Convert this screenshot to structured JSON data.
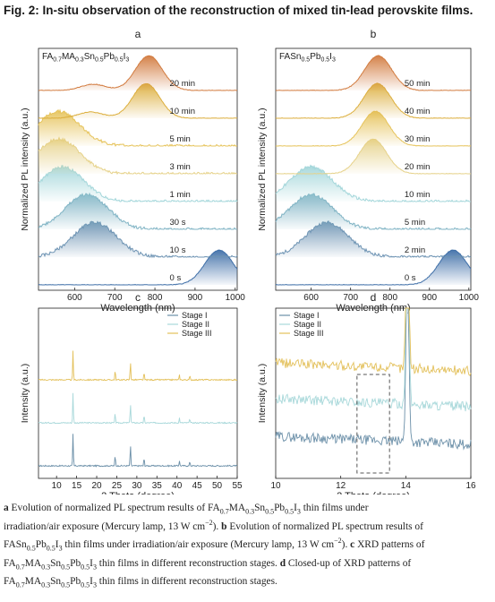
{
  "figure_title": "Fig. 2: In-situ observation of the reconstruction of mixed tin-lead perovskite films.",
  "panels": {
    "a": {
      "letter": "a",
      "title_parts": [
        [
          "FA",
          "n"
        ],
        [
          "0.7",
          "s"
        ],
        [
          "MA",
          "n"
        ],
        [
          "0.3",
          "s"
        ],
        [
          "Sn",
          "n"
        ],
        [
          "0.5",
          "s"
        ],
        [
          "Pb",
          "n"
        ],
        [
          "0.5",
          "s"
        ],
        [
          "I",
          "n"
        ],
        [
          "3",
          "s"
        ]
      ]
    },
    "b": {
      "letter": "b",
      "title_parts": [
        [
          "FASn",
          "n"
        ],
        [
          "0.5",
          "s"
        ],
        [
          "Pb",
          "n"
        ],
        [
          "0.5",
          "s"
        ],
        [
          "I",
          "n"
        ],
        [
          "3",
          "s"
        ]
      ]
    },
    "c": {
      "letter": "c"
    },
    "d": {
      "letter": "d"
    }
  },
  "chart_data": [
    {
      "panel": "a",
      "type": "line",
      "xlabel": "Wavelength (nm)",
      "ylabel": "Normalized PL intensity (a.u.)",
      "xlim": [
        510,
        1005
      ],
      "xticks": [
        600,
        700,
        800,
        900,
        1000
      ],
      "series": [
        {
          "name": "0 s",
          "peak_nm": 960,
          "color": "#3f6fa8"
        },
        {
          "name": "10 s",
          "peak_nm": 650,
          "color": "#6d93b3"
        },
        {
          "name": "30 s",
          "peak_nm": 630,
          "color": "#7fb3c4"
        },
        {
          "name": "1 min",
          "peak_nm": 570,
          "color": "#a3d6da"
        },
        {
          "name": "3 min",
          "peak_nm": 560,
          "color": "#e6d28a"
        },
        {
          "name": "5 min",
          "peak_nm": 560,
          "color": "#e6c35a"
        },
        {
          "name": "10 min",
          "peak_nm": 778,
          "color": "#dcae3c"
        },
        {
          "name": "20 min",
          "peak_nm": 785,
          "color": "#d27b3f"
        }
      ]
    },
    {
      "panel": "b",
      "type": "line",
      "xlabel": "Wavelength (nm)",
      "ylabel": "Normalized PL intensity (a.u.)",
      "xlim": [
        510,
        1005
      ],
      "xticks": [
        600,
        700,
        800,
        900,
        1000
      ],
      "series": [
        {
          "name": "0 s",
          "peak_nm": 960,
          "color": "#3f6fa8"
        },
        {
          "name": "2 min",
          "peak_nm": 640,
          "color": "#6d93b3"
        },
        {
          "name": "5 min",
          "peak_nm": 600,
          "color": "#7fb3c4"
        },
        {
          "name": "10 min",
          "peak_nm": 600,
          "color": "#a3d6da"
        },
        {
          "name": "20 min",
          "peak_nm": 757,
          "color": "#e6d28a"
        },
        {
          "name": "30 min",
          "peak_nm": 763,
          "color": "#e6c35a"
        },
        {
          "name": "40 min",
          "peak_nm": 768,
          "color": "#dcae3c"
        },
        {
          "name": "50 min",
          "peak_nm": 770,
          "color": "#d27b3f"
        }
      ]
    },
    {
      "panel": "c",
      "type": "line",
      "xlabel": "2 Theta (degree)",
      "ylabel": "Intensity (a.u.)",
      "xlim": [
        5.5,
        55
      ],
      "xticks": [
        10,
        15,
        20,
        25,
        30,
        35,
        40,
        45,
        50,
        55
      ],
      "peaks_deg": [
        14.1,
        24.6,
        28.4,
        31.8,
        40.6,
        43.2
      ],
      "series": [
        {
          "name": "Stage I",
          "color": "#6b8fa8"
        },
        {
          "name": "Stage II",
          "color": "#a8d8da"
        },
        {
          "name": "Stage III",
          "color": "#e3c05a"
        }
      ]
    },
    {
      "panel": "d",
      "type": "line",
      "xlabel": "2 Theta (degree)",
      "ylabel": "Intensity (a.u.)",
      "xlim": [
        10,
        16
      ],
      "xticks": [
        10,
        12,
        14,
        16
      ],
      "highlight_box_deg": [
        12.5,
        13.5
      ],
      "series": [
        {
          "name": "Stage I",
          "color": "#6b8fa8"
        },
        {
          "name": "Stage II",
          "color": "#a8d8da"
        },
        {
          "name": "Stage III",
          "color": "#e3c05a"
        }
      ]
    }
  ],
  "caption": {
    "line1": [
      [
        "a",
        "b"
      ],
      [
        " Evolution of normalized PL spectrum results of FA",
        "n"
      ],
      [
        "0.7",
        "s"
      ],
      [
        "MA",
        "n"
      ],
      [
        "0.3",
        "s"
      ],
      [
        "Sn",
        "n"
      ],
      [
        "0.5",
        "s"
      ],
      [
        "Pb",
        "n"
      ],
      [
        "0.5",
        "s"
      ],
      [
        "I",
        "n"
      ],
      [
        "3",
        "s"
      ],
      [
        " thin films under",
        "n"
      ]
    ],
    "line2": [
      [
        "irradiation/air exposure (Mercury lamp, 13 W cm",
        "n"
      ],
      [
        "−2",
        "u"
      ],
      [
        "). ",
        "n"
      ],
      [
        "b",
        "b"
      ],
      [
        " Evolution of normalized PL spectrum results of",
        "n"
      ]
    ],
    "line3": [
      [
        "FASn",
        "n"
      ],
      [
        "0.5",
        "s"
      ],
      [
        "Pb",
        "n"
      ],
      [
        "0.5",
        "s"
      ],
      [
        "I",
        "n"
      ],
      [
        "3",
        "s"
      ],
      [
        " thin films under irradiation/air exposure (Mercury lamp, 13 W cm",
        "n"
      ],
      [
        "−2",
        "u"
      ],
      [
        "). ",
        "n"
      ],
      [
        "c",
        "b"
      ],
      [
        " XRD patterns of",
        "n"
      ]
    ],
    "line4": [
      [
        "FA",
        "n"
      ],
      [
        "0.7",
        "s"
      ],
      [
        "MA",
        "n"
      ],
      [
        "0.3",
        "s"
      ],
      [
        "Sn",
        "n"
      ],
      [
        "0.5",
        "s"
      ],
      [
        "Pb",
        "n"
      ],
      [
        "0.5",
        "s"
      ],
      [
        "I",
        "n"
      ],
      [
        "3",
        "s"
      ],
      [
        " thin films in different reconstruction stages. ",
        "n"
      ],
      [
        "d",
        "b"
      ],
      [
        " Closed-up of XRD patterns of",
        "n"
      ]
    ],
    "line5": [
      [
        "FA",
        "n"
      ],
      [
        "0.7",
        "s"
      ],
      [
        "MA",
        "n"
      ],
      [
        "0.3",
        "s"
      ],
      [
        "Sn",
        "n"
      ],
      [
        "0.5",
        "s"
      ],
      [
        "Pb",
        "n"
      ],
      [
        "0.5",
        "s"
      ],
      [
        "I",
        "n"
      ],
      [
        "3",
        "s"
      ],
      [
        " thin films in different reconstruction stages.",
        "n"
      ]
    ]
  }
}
